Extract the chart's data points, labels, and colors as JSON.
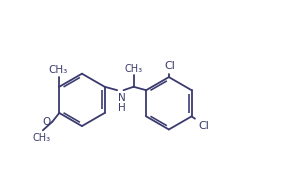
{
  "bg_color": "#ffffff",
  "line_color": "#3a3a6e",
  "line_width": 1.3,
  "font_size": 7.5,
  "figsize": [
    2.91,
    1.91
  ],
  "dpi": 100,
  "xlim": [
    0.3,
    10.2
  ],
  "ylim": [
    0.5,
    6.8
  ]
}
